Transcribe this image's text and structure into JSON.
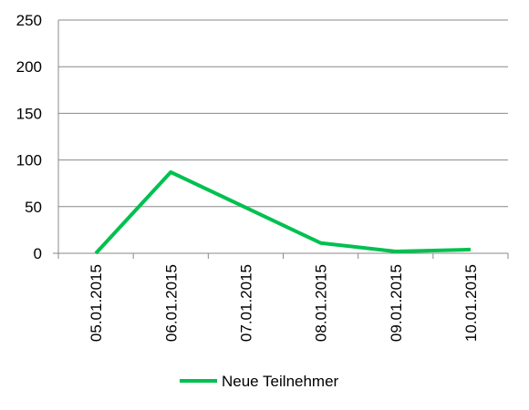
{
  "chart_data": {
    "type": "line",
    "title": "",
    "xlabel": "",
    "ylabel": "",
    "categories": [
      "05.01.2015",
      "06.01.2015",
      "07.01.2015",
      "08.01.2015",
      "09.01.2015",
      "10.01.2015"
    ],
    "y_ticks": [
      "0",
      "50",
      "100",
      "150",
      "200",
      "250"
    ],
    "ylim": [
      0,
      250
    ],
    "grid": true,
    "legend_position": "bottom",
    "series": [
      {
        "name": "Neue Teilnehmer",
        "values": [
          0,
          87,
          49,
          11,
          2,
          4
        ],
        "color": "#00c050"
      }
    ]
  }
}
